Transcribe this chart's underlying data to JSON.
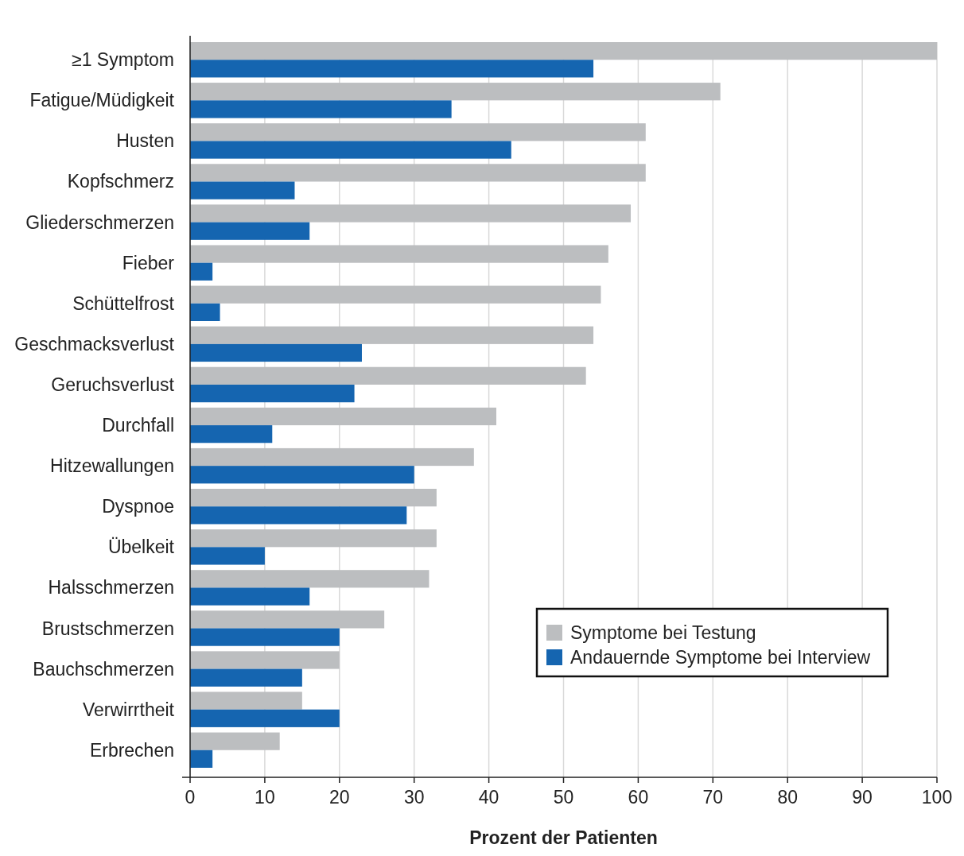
{
  "chart_data": {
    "type": "bar",
    "orientation": "horizontal",
    "xlabel": "Prozent der Patienten",
    "categories": [
      "≥1 Symptom",
      "Fatigue/Müdigkeit",
      "Husten",
      "Kopfschmerz",
      "Gliederschmerzen",
      "Fieber",
      "Schüttelfrost",
      "Geschmacksverlust",
      "Geruchsverlust",
      "Durchfall",
      "Hitzewallungen",
      "Dyspnoe",
      "Übelkeit",
      "Halsschmerzen",
      "Brustschmerzen",
      "Bauchschmerzen",
      "Verwirrtheit",
      "Erbrechen"
    ],
    "series": [
      {
        "name": "Symptome bei Testung",
        "color": "#bcbec0",
        "values": [
          100,
          71,
          61,
          61,
          59,
          56,
          55,
          54,
          53,
          41,
          38,
          33,
          33,
          32,
          26,
          20,
          15,
          12
        ]
      },
      {
        "name": "Andauernde Symptome bei Interview",
        "color": "#1565b0",
        "values": [
          54,
          35,
          43,
          14,
          16,
          3,
          4,
          23,
          22,
          11,
          30,
          29,
          10,
          16,
          20,
          15,
          20,
          3
        ]
      }
    ],
    "xlim": [
      0,
      100
    ],
    "xticks": [
      0,
      10,
      20,
      30,
      40,
      50,
      60,
      70,
      80,
      90,
      100
    ],
    "grid": "x",
    "legend": "bottom right"
  }
}
